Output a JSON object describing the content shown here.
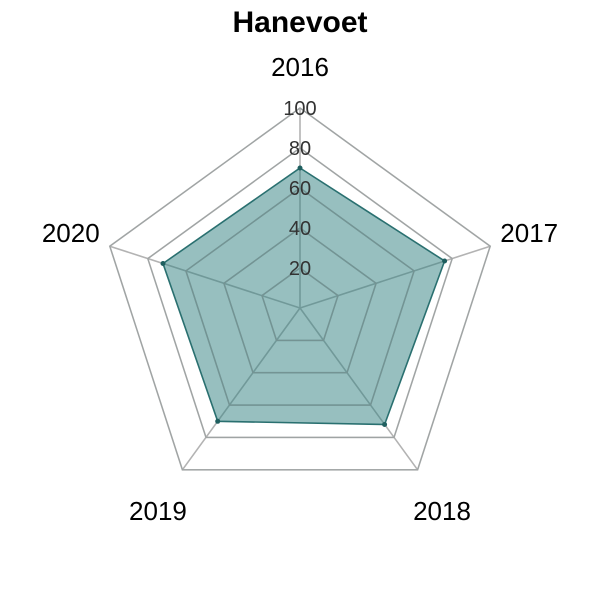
{
  "chart_data": {
    "type": "radar",
    "title": "Hanevoet",
    "categories": [
      "2016",
      "2017",
      "2018",
      "2019",
      "2020"
    ],
    "series": [
      {
        "values": [
          70,
          76,
          72,
          70,
          72
        ]
      }
    ],
    "radial_range": [
      0,
      100
    ],
    "radial_ticks": [
      20,
      40,
      60,
      80,
      100
    ],
    "grid": true,
    "colors": {
      "fill": "#2f7f7f",
      "stroke": "#2a7070",
      "point": "#1f5f5f",
      "outer_grid": "#b3b3b3",
      "inner_grid": "#7a8a8a"
    }
  }
}
